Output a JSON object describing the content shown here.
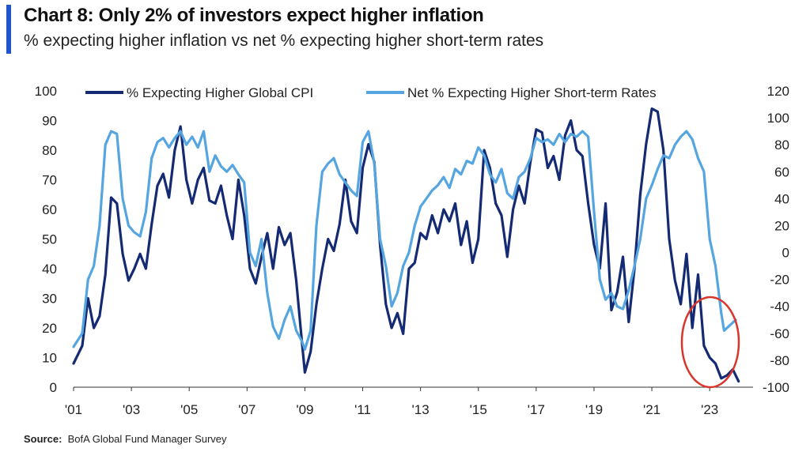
{
  "header": {
    "title": "Chart 8: Only 2% of investors expect higher inflation",
    "subtitle": "% expecting higher inflation vs net % expecting higher short-term rates"
  },
  "footer": {
    "source_label": "Source:",
    "source_text": "BofA Global Fund Manager Survey"
  },
  "colors": {
    "accent": "#1f56c9",
    "cpi": "#142a73",
    "rates": "#55a6e0",
    "highlight": "#d9362b"
  },
  "chart_data": {
    "type": "line",
    "title": "Chart 8: Only 2% of investors expect higher inflation",
    "subtitle": "% expecting higher inflation vs net % expecting higher short-term rates",
    "x_tick_labels": [
      "'01",
      "'03",
      "'05",
      "'07",
      "'09",
      "'11",
      "'13",
      "'15",
      "'17",
      "'19",
      "'21",
      "'23"
    ],
    "xlim": [
      2001,
      2024.5
    ],
    "left_axis": {
      "ylim": [
        0,
        100
      ],
      "ticks": [
        "0",
        "10",
        "20",
        "30",
        "40",
        "50",
        "60",
        "70",
        "80",
        "90",
        "100"
      ]
    },
    "right_axis": {
      "ylim": [
        -100,
        120
      ],
      "ticks": [
        "-100",
        "-80",
        "-60",
        "-40",
        "-20",
        "0",
        "20",
        "40",
        "60",
        "80",
        "100",
        "120"
      ]
    },
    "grid": false,
    "legend": "top",
    "series": [
      {
        "name": "% Expecting Higher Global CPI",
        "axis": "left",
        "color": "#142a73",
        "points": [
          [
            2001.0,
            8
          ],
          [
            2001.3,
            14
          ],
          [
            2001.5,
            30
          ],
          [
            2001.7,
            20
          ],
          [
            2001.9,
            24
          ],
          [
            2002.1,
            38
          ],
          [
            2002.3,
            64
          ],
          [
            2002.5,
            62
          ],
          [
            2002.7,
            45
          ],
          [
            2002.9,
            36
          ],
          [
            2003.1,
            40
          ],
          [
            2003.3,
            45
          ],
          [
            2003.5,
            40
          ],
          [
            2003.7,
            55
          ],
          [
            2003.9,
            68
          ],
          [
            2004.1,
            72
          ],
          [
            2004.3,
            64
          ],
          [
            2004.5,
            80
          ],
          [
            2004.7,
            88
          ],
          [
            2004.9,
            70
          ],
          [
            2005.1,
            62
          ],
          [
            2005.3,
            70
          ],
          [
            2005.5,
            74
          ],
          [
            2005.7,
            63
          ],
          [
            2005.9,
            62
          ],
          [
            2006.1,
            68
          ],
          [
            2006.3,
            58
          ],
          [
            2006.5,
            50
          ],
          [
            2006.7,
            70
          ],
          [
            2006.9,
            58
          ],
          [
            2007.1,
            40
          ],
          [
            2007.3,
            35
          ],
          [
            2007.5,
            44
          ],
          [
            2007.7,
            52
          ],
          [
            2007.9,
            40
          ],
          [
            2008.1,
            54
          ],
          [
            2008.3,
            48
          ],
          [
            2008.5,
            52
          ],
          [
            2008.7,
            36
          ],
          [
            2008.9,
            15
          ],
          [
            2009.0,
            5
          ],
          [
            2009.2,
            12
          ],
          [
            2009.4,
            28
          ],
          [
            2009.6,
            40
          ],
          [
            2009.8,
            50
          ],
          [
            2010.0,
            46
          ],
          [
            2010.2,
            55
          ],
          [
            2010.4,
            70
          ],
          [
            2010.6,
            56
          ],
          [
            2010.8,
            52
          ],
          [
            2011.0,
            74
          ],
          [
            2011.2,
            82
          ],
          [
            2011.4,
            76
          ],
          [
            2011.6,
            48
          ],
          [
            2011.8,
            28
          ],
          [
            2012.0,
            20
          ],
          [
            2012.2,
            25
          ],
          [
            2012.4,
            18
          ],
          [
            2012.6,
            40
          ],
          [
            2012.8,
            42
          ],
          [
            2013.0,
            52
          ],
          [
            2013.2,
            50
          ],
          [
            2013.4,
            58
          ],
          [
            2013.6,
            52
          ],
          [
            2013.8,
            60
          ],
          [
            2014.0,
            56
          ],
          [
            2014.2,
            62
          ],
          [
            2014.4,
            48
          ],
          [
            2014.6,
            56
          ],
          [
            2014.8,
            42
          ],
          [
            2015.0,
            50
          ],
          [
            2015.2,
            80
          ],
          [
            2015.4,
            74
          ],
          [
            2015.6,
            62
          ],
          [
            2015.8,
            58
          ],
          [
            2016.0,
            44
          ],
          [
            2016.2,
            60
          ],
          [
            2016.4,
            68
          ],
          [
            2016.6,
            62
          ],
          [
            2016.8,
            76
          ],
          [
            2017.0,
            87
          ],
          [
            2017.2,
            86
          ],
          [
            2017.4,
            74
          ],
          [
            2017.6,
            78
          ],
          [
            2017.8,
            70
          ],
          [
            2018.0,
            85
          ],
          [
            2018.2,
            90
          ],
          [
            2018.4,
            80
          ],
          [
            2018.6,
            78
          ],
          [
            2018.8,
            62
          ],
          [
            2019.0,
            48
          ],
          [
            2019.2,
            40
          ],
          [
            2019.4,
            62
          ],
          [
            2019.6,
            26
          ],
          [
            2019.8,
            32
          ],
          [
            2020.0,
            44
          ],
          [
            2020.2,
            22
          ],
          [
            2020.4,
            40
          ],
          [
            2020.6,
            65
          ],
          [
            2020.8,
            82
          ],
          [
            2021.0,
            94
          ],
          [
            2021.2,
            93
          ],
          [
            2021.4,
            80
          ],
          [
            2021.6,
            50
          ],
          [
            2021.8,
            36
          ],
          [
            2022.0,
            28
          ],
          [
            2022.2,
            45
          ],
          [
            2022.4,
            20
          ],
          [
            2022.6,
            38
          ],
          [
            2022.8,
            14
          ],
          [
            2023.0,
            10
          ],
          [
            2023.2,
            8
          ],
          [
            2023.4,
            3
          ],
          [
            2023.6,
            4
          ],
          [
            2023.8,
            6
          ],
          [
            2024.0,
            2
          ]
        ]
      },
      {
        "name": "Net % Expecting Higher Short-term Rates",
        "axis": "right",
        "color": "#55a6e0",
        "points": [
          [
            2001.0,
            -70
          ],
          [
            2001.3,
            -60
          ],
          [
            2001.5,
            -20
          ],
          [
            2001.7,
            -10
          ],
          [
            2001.9,
            20
          ],
          [
            2002.1,
            80
          ],
          [
            2002.3,
            90
          ],
          [
            2002.5,
            88
          ],
          [
            2002.7,
            40
          ],
          [
            2002.9,
            20
          ],
          [
            2003.1,
            15
          ],
          [
            2003.3,
            12
          ],
          [
            2003.5,
            30
          ],
          [
            2003.7,
            70
          ],
          [
            2003.9,
            82
          ],
          [
            2004.1,
            85
          ],
          [
            2004.3,
            78
          ],
          [
            2004.5,
            85
          ],
          [
            2004.7,
            90
          ],
          [
            2004.9,
            80
          ],
          [
            2005.1,
            86
          ],
          [
            2005.3,
            78
          ],
          [
            2005.5,
            90
          ],
          [
            2005.7,
            60
          ],
          [
            2005.9,
            72
          ],
          [
            2006.1,
            64
          ],
          [
            2006.3,
            60
          ],
          [
            2006.5,
            65
          ],
          [
            2006.7,
            58
          ],
          [
            2006.9,
            52
          ],
          [
            2007.1,
            0
          ],
          [
            2007.3,
            -10
          ],
          [
            2007.5,
            10
          ],
          [
            2007.7,
            -30
          ],
          [
            2007.9,
            -55
          ],
          [
            2008.1,
            -64
          ],
          [
            2008.3,
            -50
          ],
          [
            2008.5,
            -40
          ],
          [
            2008.7,
            -58
          ],
          [
            2008.9,
            -66
          ],
          [
            2009.0,
            -72
          ],
          [
            2009.2,
            -58
          ],
          [
            2009.4,
            20
          ],
          [
            2009.6,
            60
          ],
          [
            2009.8,
            66
          ],
          [
            2010.0,
            70
          ],
          [
            2010.2,
            58
          ],
          [
            2010.4,
            52
          ],
          [
            2010.6,
            46
          ],
          [
            2010.8,
            42
          ],
          [
            2011.0,
            82
          ],
          [
            2011.2,
            90
          ],
          [
            2011.4,
            66
          ],
          [
            2011.6,
            10
          ],
          [
            2011.8,
            -10
          ],
          [
            2012.0,
            -40
          ],
          [
            2012.2,
            -30
          ],
          [
            2012.4,
            -10
          ],
          [
            2012.6,
            0
          ],
          [
            2012.8,
            20
          ],
          [
            2013.0,
            34
          ],
          [
            2013.2,
            40
          ],
          [
            2013.4,
            46
          ],
          [
            2013.6,
            50
          ],
          [
            2013.8,
            56
          ],
          [
            2014.0,
            48
          ],
          [
            2014.2,
            62
          ],
          [
            2014.4,
            58
          ],
          [
            2014.6,
            68
          ],
          [
            2014.8,
            66
          ],
          [
            2015.0,
            78
          ],
          [
            2015.2,
            72
          ],
          [
            2015.4,
            58
          ],
          [
            2015.6,
            52
          ],
          [
            2015.8,
            62
          ],
          [
            2016.0,
            44
          ],
          [
            2016.2,
            40
          ],
          [
            2016.4,
            56
          ],
          [
            2016.6,
            60
          ],
          [
            2016.8,
            70
          ],
          [
            2017.0,
            85
          ],
          [
            2017.2,
            82
          ],
          [
            2017.4,
            84
          ],
          [
            2017.6,
            80
          ],
          [
            2017.8,
            88
          ],
          [
            2018.0,
            82
          ],
          [
            2018.2,
            88
          ],
          [
            2018.4,
            86
          ],
          [
            2018.6,
            90
          ],
          [
            2018.8,
            86
          ],
          [
            2019.0,
            30
          ],
          [
            2019.2,
            -20
          ],
          [
            2019.4,
            -35
          ],
          [
            2019.6,
            -30
          ],
          [
            2019.8,
            -40
          ],
          [
            2020.0,
            -42
          ],
          [
            2020.2,
            -28
          ],
          [
            2020.4,
            -10
          ],
          [
            2020.6,
            10
          ],
          [
            2020.8,
            40
          ],
          [
            2021.0,
            50
          ],
          [
            2021.2,
            62
          ],
          [
            2021.4,
            72
          ],
          [
            2021.6,
            70
          ],
          [
            2021.8,
            80
          ],
          [
            2022.0,
            86
          ],
          [
            2022.2,
            90
          ],
          [
            2022.4,
            84
          ],
          [
            2022.6,
            70
          ],
          [
            2022.8,
            60
          ],
          [
            2023.0,
            10
          ],
          [
            2023.2,
            -10
          ],
          [
            2023.4,
            -45
          ],
          [
            2023.5,
            -58
          ],
          [
            2023.7,
            -54
          ],
          [
            2023.9,
            -50
          ]
        ]
      }
    ],
    "annotation": {
      "shape": "ellipse",
      "color": "#d9362b",
      "marks": "2023 lows"
    }
  }
}
